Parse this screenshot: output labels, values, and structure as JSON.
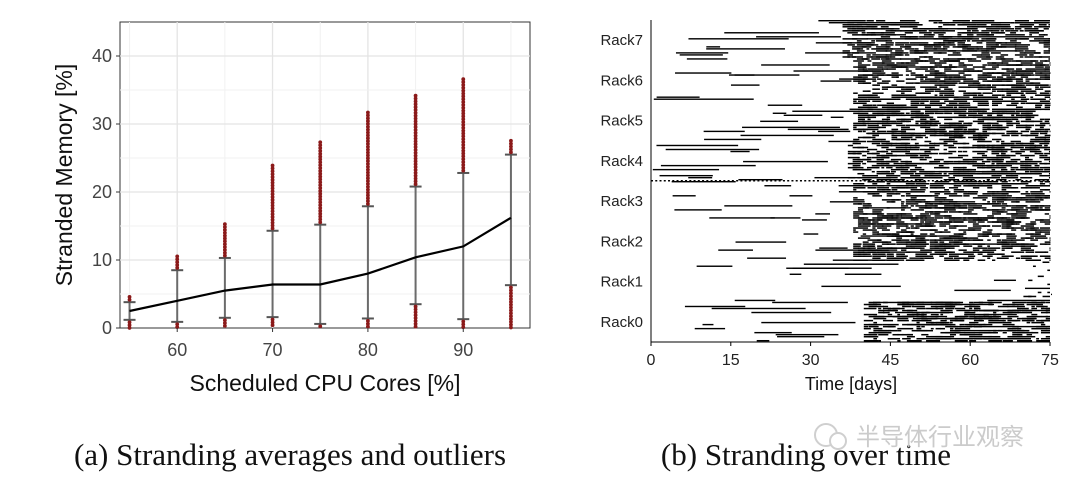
{
  "chart_data": [
    {
      "type": "scatter",
      "caption": "(a) Stranding averages and outliers",
      "xlabel": "Scheduled CPU Cores [%]",
      "ylabel": "Stranded Memory [%]",
      "xlim": [
        54,
        97
      ],
      "ylim": [
        0,
        45
      ],
      "xticks": [
        60,
        70,
        80,
        90
      ],
      "yticks": [
        0,
        10,
        20,
        30,
        40
      ],
      "grid": true,
      "mean_line": {
        "x": [
          55,
          60,
          65,
          70,
          75,
          80,
          85,
          90,
          95
        ],
        "y": [
          2.5,
          4.0,
          5.5,
          6.4,
          6.4,
          8.0,
          10.4,
          12.0,
          16.2
        ]
      },
      "error_bars": [
        {
          "x": 55,
          "low": 1.2,
          "high": 3.8,
          "max": 4.7
        },
        {
          "x": 60,
          "low": 0.9,
          "high": 8.5,
          "max": 10.6
        },
        {
          "x": 65,
          "low": 1.5,
          "high": 10.3,
          "max": 15.5
        },
        {
          "x": 70,
          "low": 1.6,
          "high": 14.3,
          "max": 24.0
        },
        {
          "x": 75,
          "low": 0.6,
          "high": 15.2,
          "max": 27.5
        },
        {
          "x": 80,
          "low": 1.4,
          "high": 17.9,
          "max": 32.0
        },
        {
          "x": 85,
          "low": 3.5,
          "high": 20.8,
          "max": 34.5
        },
        {
          "x": 90,
          "low": 1.3,
          "high": 22.8,
          "max": 37.0
        },
        {
          "x": 95,
          "low": 6.3,
          "high": 25.5,
          "max": 27.8
        }
      ],
      "outlier_color": "#8b1a1a"
    },
    {
      "type": "heatmap",
      "caption": "(b) Stranding over time",
      "xlabel": "Time [days]",
      "xlim": [
        0,
        75
      ],
      "xticks": [
        0,
        15,
        30,
        45,
        60,
        75
      ],
      "categories": [
        "Rack7",
        "Rack6",
        "Rack5",
        "Rack4",
        "Rack3",
        "Rack2",
        "Rack1",
        "Rack0"
      ],
      "density_start_day": [
        36,
        38,
        38,
        37,
        38,
        38,
        70,
        40
      ]
    }
  ],
  "watermark": "半导体行业观察"
}
